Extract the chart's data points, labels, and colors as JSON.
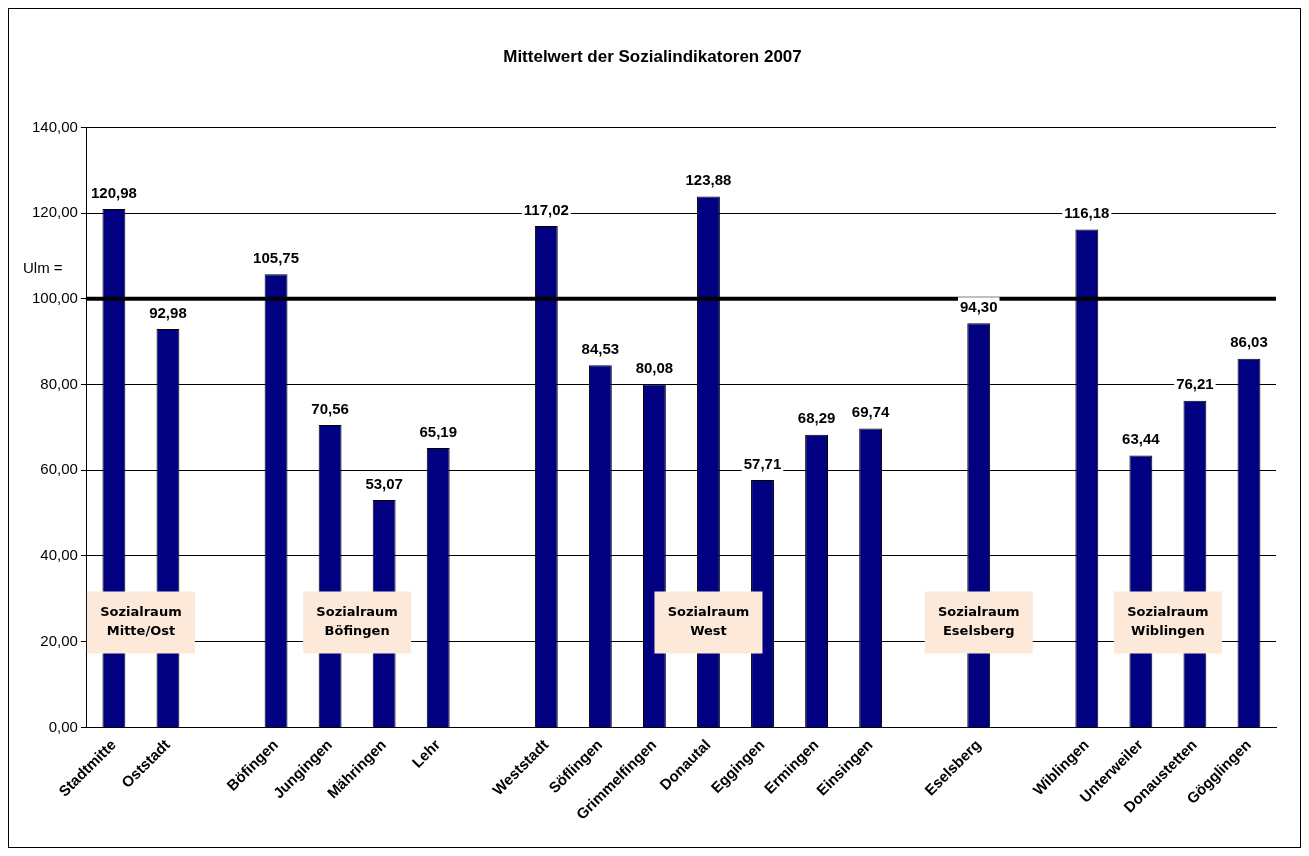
{
  "chart_data": {
    "type": "bar",
    "title": "Mittelwert der Sozialindikatoren 2007",
    "categories": [
      "Stadtmitte",
      "Oststadt",
      null,
      "Böfingen",
      "Jungingen",
      "Mähringen",
      "Lehr",
      null,
      "Weststadt",
      "Söflingen",
      "Grimmelfingen",
      "Donautal",
      "Eggingen",
      "Ermingen",
      "Einsingen",
      null,
      "Eselsberg",
      null,
      "Wiblingen",
      "Unterweiler",
      "Donaustetten",
      "Gögglingen"
    ],
    "values": [
      120.98,
      92.98,
      null,
      105.75,
      70.56,
      53.07,
      65.19,
      null,
      117.02,
      84.53,
      80.08,
      123.88,
      57.71,
      68.29,
      69.74,
      null,
      94.3,
      null,
      116.18,
      63.44,
      76.21,
      86.03
    ],
    "value_labels": [
      "120,98",
      "92,98",
      null,
      "105,75",
      "70,56",
      "53,07",
      "65,19",
      null,
      "117,02",
      "84,53",
      "80,08",
      "123,88",
      "57,71",
      "68,29",
      "69,74",
      null,
      "94,30",
      null,
      "116,18",
      "63,44",
      "76,21",
      "86,03"
    ],
    "color": "#000080",
    "ylim": [
      0,
      140
    ],
    "yticks": [
      {
        "value": 0,
        "label": "0,00"
      },
      {
        "value": 20,
        "label": "20,00"
      },
      {
        "value": 40,
        "label": "40,00"
      },
      {
        "value": 60,
        "label": "60,00"
      },
      {
        "value": 80,
        "label": "80,00"
      },
      {
        "value": 100,
        "label": "100,00"
      },
      {
        "value": 120,
        "label": "120,00"
      },
      {
        "value": 140,
        "label": "140,00"
      }
    ],
    "grid": "y",
    "legend": false,
    "ref_lines": [
      {
        "axis": "y",
        "value": 100,
        "label": "Ulm =",
        "color": "#000000"
      }
    ],
    "annotations": [
      "Sozialraum Mitte/Ost",
      "Sozialraum Böfingen",
      "Sozialraum West",
      "Sozialraum Eselsberg",
      "Sozialraum Wiblingen"
    ]
  }
}
